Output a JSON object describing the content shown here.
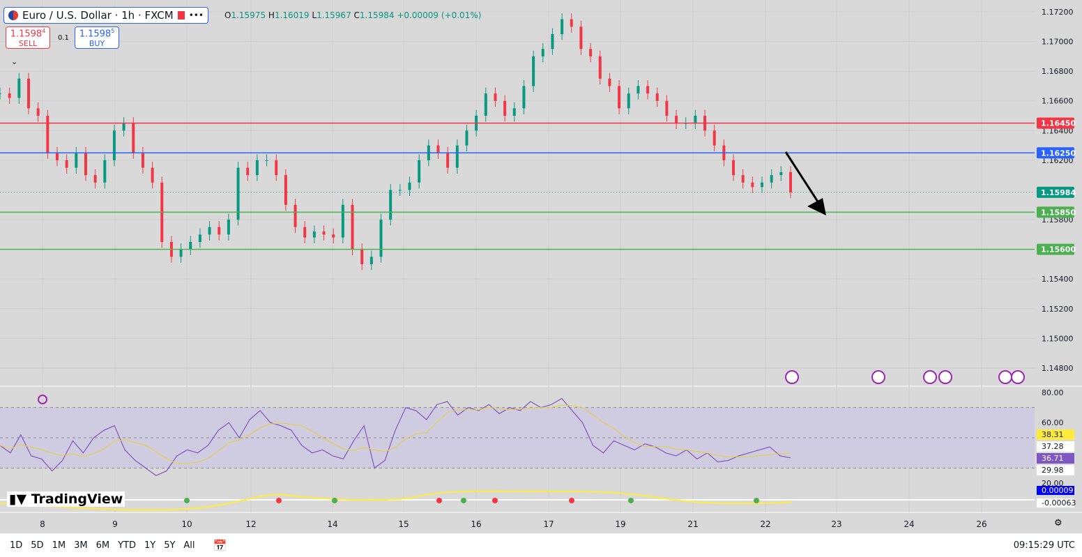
{
  "header": {
    "symbol": "Euro / U.S. Dollar · 1h · FXCM",
    "open_label": "O",
    "open": "1.15975",
    "high_label": "H",
    "high": "1.16019",
    "low_label": "L",
    "low": "1.15967",
    "close_label": "C",
    "close": "1.15984",
    "change": "+0.00009 (+0.01%)"
  },
  "trade": {
    "sell_price": "1.1598",
    "sell_sup": "4",
    "sell_label": "SELL",
    "spread": "0.1",
    "buy_price": "1.1598",
    "buy_sup": "5",
    "buy_label": "BUY"
  },
  "chart_data": {
    "type": "candlestick",
    "ylim": [
      1.147,
      1.173
    ],
    "y_ticks": [
      "1.17200",
      "1.17000",
      "1.16800",
      "1.16600",
      "1.16400",
      "1.16200",
      "1.15800",
      "1.15400",
      "1.15200",
      "1.15000",
      "1.14800"
    ],
    "x_ticks": [
      "8",
      "9",
      "10",
      "12",
      "14",
      "15",
      "16",
      "17",
      "19",
      "21",
      "22",
      "23",
      "24",
      "26"
    ],
    "closes": [
      1.1665,
      1.1662,
      1.1675,
      1.1655,
      1.165,
      1.1625,
      1.162,
      1.1615,
      1.1625,
      1.161,
      1.1605,
      1.162,
      1.164,
      1.1645,
      1.1625,
      1.1615,
      1.1605,
      1.1565,
      1.1555,
      1.156,
      1.1565,
      1.157,
      1.1575,
      1.157,
      1.158,
      1.1615,
      1.161,
      1.162,
      1.162,
      1.161,
      1.159,
      1.1575,
      1.1568,
      1.1572,
      1.157,
      1.1568,
      1.159,
      1.156,
      1.155,
      1.1555,
      1.158,
      1.16,
      1.16,
      1.1605,
      1.162,
      1.163,
      1.1625,
      1.1615,
      1.163,
      1.164,
      1.165,
      1.1665,
      1.166,
      1.165,
      1.1655,
      1.167,
      1.169,
      1.1695,
      1.1705,
      1.1715,
      1.171,
      1.1695,
      1.169,
      1.1675,
      1.167,
      1.1655,
      1.1665,
      1.167,
      1.1665,
      1.166,
      1.165,
      1.1645,
      1.1645,
      1.165,
      1.164,
      1.163,
      1.162,
      1.161,
      1.1605,
      1.1602,
      1.1605,
      1.161,
      1.1612,
      1.15984
    ],
    "levels": [
      {
        "price": 1.1645,
        "label": "1.16450",
        "color": "#f23645"
      },
      {
        "price": 1.1625,
        "label": "1.16250",
        "color": "#2962ff"
      },
      {
        "price": 1.15984,
        "label": "1.15984",
        "color": "#089981"
      },
      {
        "price": 1.1585,
        "label": "1.15850",
        "color": "#4caf50"
      },
      {
        "price": 1.156,
        "label": "1.15600",
        "color": "#4caf50"
      }
    ],
    "rsi": {
      "ylim": [
        15,
        85
      ],
      "y_ticks": [
        "80.00",
        "60.00",
        "20.00"
      ],
      "band": [
        30,
        70
      ],
      "values": [
        45,
        40,
        52,
        38,
        36,
        28,
        35,
        48,
        40,
        50,
        55,
        58,
        42,
        35,
        30,
        25,
        28,
        38,
        42,
        40,
        45,
        55,
        60,
        50,
        62,
        68,
        60,
        58,
        55,
        45,
        40,
        42,
        38,
        36,
        48,
        58,
        30,
        35,
        55,
        70,
        68,
        62,
        72,
        74,
        65,
        70,
        68,
        72,
        66,
        70,
        68,
        74,
        70,
        72,
        76,
        68,
        60,
        45,
        40,
        48,
        45,
        42,
        46,
        44,
        40,
        38,
        42,
        36,
        40,
        34,
        35,
        38,
        40,
        42,
        44,
        38,
        36.71
      ],
      "labels": [
        {
          "text": "38.31",
          "bg": "#ffeb3b",
          "color": "#131722"
        },
        {
          "text": "37.28",
          "bg": "#ffffff",
          "color": "#131722"
        },
        {
          "text": "36.71",
          "bg": "#7e57c2",
          "color": "#ffffff"
        },
        {
          "text": "29.98",
          "bg": "#ffffff",
          "color": "#131722"
        }
      ]
    },
    "macd_labels": [
      {
        "text": "0.00009",
        "bg": "#0000ff",
        "color": "#ffffff"
      },
      {
        "text": "-0.00063",
        "bg": "#ffffff",
        "color": "#131722"
      }
    ]
  },
  "footer": {
    "ranges": [
      "1D",
      "5D",
      "1M",
      "3M",
      "6M",
      "YTD",
      "1Y",
      "5Y",
      "All"
    ],
    "time": "09:15:29 UTC"
  },
  "logo": "TradingView"
}
